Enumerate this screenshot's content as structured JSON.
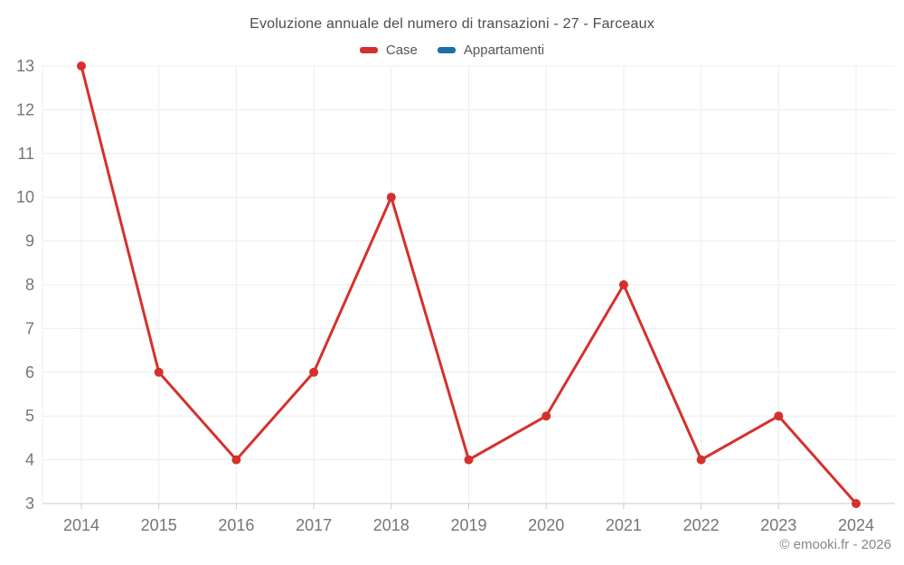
{
  "title": "Evoluzione annuale del numero di transazioni - 27 - Farceaux",
  "legend": [
    {
      "label": "Case",
      "color": "#d6302c"
    },
    {
      "label": "Appartamenti",
      "color": "#1a6fa8"
    }
  ],
  "footer": "© emooki.fr - 2026",
  "chart_data": {
    "type": "line",
    "title": "Evoluzione annuale del numero di transazioni - 27 - Farceaux",
    "categories": [
      "2014",
      "2015",
      "2016",
      "2017",
      "2018",
      "2019",
      "2020",
      "2021",
      "2022",
      "2023",
      "2024"
    ],
    "series": [
      {
        "name": "Case",
        "color": "#d6302c",
        "values": [
          13,
          6,
          4,
          6,
          10,
          4,
          5,
          8,
          4,
          5,
          3
        ]
      },
      {
        "name": "Appartamenti",
        "color": "#1a6fa8",
        "values": []
      }
    ],
    "xlabel": "",
    "ylabel": "",
    "ylim": [
      3,
      13
    ],
    "ytick_step": 1,
    "grid": true,
    "legend_position": "top",
    "colors": {
      "grid": "#ececec",
      "axis": "#c9c9c9",
      "tick_label": "#757575"
    }
  }
}
